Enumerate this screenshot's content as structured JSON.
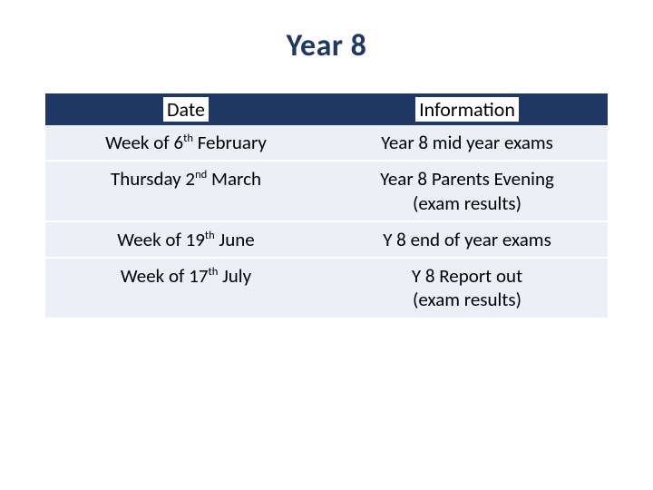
{
  "title": "Year 8",
  "table": {
    "headers": [
      "Date",
      "Information"
    ],
    "rows": [
      {
        "date_html": "Week of 6<sup>th</sup> February",
        "info_html": "Year 8 mid year exams"
      },
      {
        "date_html": "Thursday 2<sup>nd</sup> March",
        "info_html": "Year 8 Parents Evening<br>(exam results)"
      },
      {
        "date_html": "Week of 19<sup>th</sup> June",
        "info_html": "Y 8 end of year exams"
      },
      {
        "date_html": "Week of 17<sup>th</sup> July",
        "info_html": "Y 8 Report out<br>(exam results)"
      }
    ],
    "header_bg": "#1f3864",
    "header_text_bg": "#ffffff",
    "header_text_color": "#000000",
    "cell_bg": "#eceff5",
    "cell_text_color": "#000000",
    "title_color": "#1f3864",
    "slide_bg": "#ffffff",
    "title_fontsize": 34,
    "cell_fontsize": 21,
    "header_fontsize": 22
  }
}
